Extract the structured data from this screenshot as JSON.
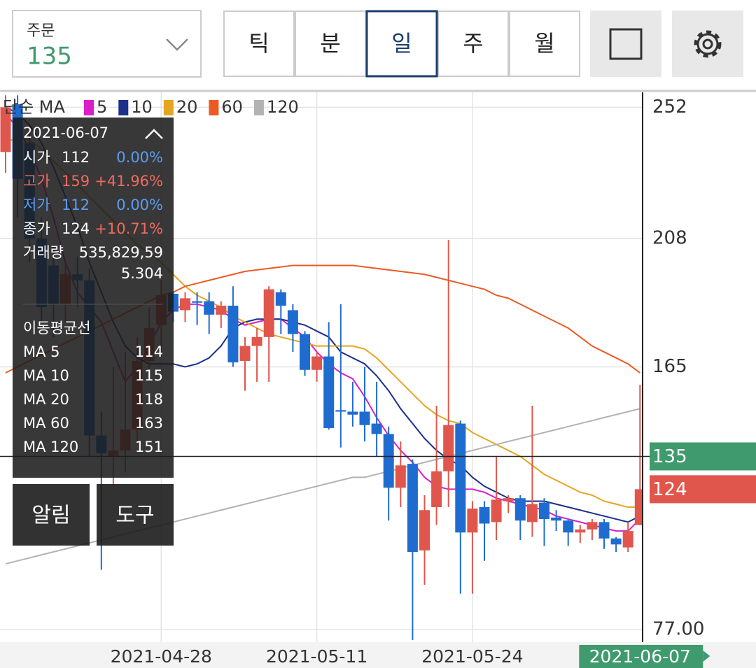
{
  "header": {
    "order_label": "주문",
    "order_value": "135",
    "tabs": [
      "틱",
      "분",
      "일",
      "주",
      "월"
    ],
    "selected_tab": 2
  },
  "chart_data": {
    "type": "candlestick",
    "legend_title": "단순 MA",
    "categories": [
      null,
      null,
      null,
      null,
      null,
      null,
      null,
      null,
      null,
      null,
      null,
      null,
      null,
      "2021-04-28",
      null,
      null,
      null,
      null,
      null,
      null,
      null,
      null,
      null,
      null,
      null,
      null,
      "2021-05-11",
      null,
      null,
      null,
      null,
      null,
      null,
      null,
      null,
      null,
      null,
      null,
      null,
      "2021-05-24",
      null,
      null,
      null,
      null,
      null,
      null,
      null,
      null,
      null,
      null,
      null,
      null,
      null,
      "2021-06-07"
    ],
    "open": [
      237,
      253,
      240,
      208,
      199,
      186,
      196,
      194,
      142,
      135,
      137,
      144,
      167,
      179,
      189.5,
      184,
      187,
      187,
      182.5,
      185.5,
      167,
      172,
      175,
      190,
      184,
      176,
      164,
      168.5,
      150.5,
      150,
      150,
      146,
      142.5,
      124.5,
      132.5,
      103.5,
      118,
      130,
      146,
      109.5,
      118,
      113,
      120,
      121,
      113,
      119.5,
      114.5,
      113.5,
      109.5,
      110.5,
      113,
      107.5,
      104.5,
      112
    ],
    "high": [
      256,
      256,
      245,
      215,
      205,
      200,
      202,
      198,
      150,
      165,
      170,
      175,
      185,
      194,
      190,
      190,
      190,
      190,
      187,
      192,
      175,
      178,
      192,
      191,
      186,
      177,
      170,
      180,
      186,
      160,
      165,
      160,
      145,
      140,
      134,
      122,
      152,
      207.5,
      147,
      120,
      120,
      135,
      122,
      122,
      152,
      121,
      117,
      114,
      112,
      114,
      114,
      108,
      113,
      159
    ],
    "low": [
      230,
      215,
      200,
      180,
      175,
      180,
      185,
      135,
      97,
      125,
      130,
      140,
      160,
      170,
      180,
      180,
      179,
      176,
      178,
      165,
      157,
      160,
      160,
      176,
      170,
      162,
      160,
      144,
      138,
      145,
      140,
      135,
      113.5,
      118,
      73.5,
      92,
      112,
      118,
      89,
      89,
      100,
      107,
      116,
      107,
      108,
      105,
      110,
      105,
      106,
      107,
      104,
      103,
      103,
      112
    ],
    "close": [
      252,
      228,
      208,
      185,
      186,
      196,
      194,
      142,
      136,
      137,
      144,
      167,
      178,
      189,
      183.5,
      188,
      186.5,
      182.5,
      185.5,
      166.5,
      172,
      175,
      191,
      185.5,
      176,
      164,
      168.5,
      144.5,
      150,
      149,
      145.5,
      142.5,
      124.5,
      132,
      103,
      117,
      130,
      145.5,
      109.5,
      117.5,
      112.5,
      120.5,
      121,
      113.5,
      119,
      114,
      113.5,
      109.5,
      110.5,
      113,
      107.5,
      105.5,
      110,
      124
    ],
    "up_color": "#e0564c",
    "down_color": "#1f6cd0",
    "series": [
      {
        "name": "5",
        "color": "#d81fc8",
        "values": [
          250,
          245,
          238,
          228,
          215,
          200,
          190,
          185,
          180,
          170,
          160,
          165,
          172,
          180,
          184,
          186,
          186,
          185,
          184,
          181,
          179,
          180,
          181,
          181,
          178,
          175,
          170,
          166,
          163,
          161,
          155,
          148,
          142,
          137,
          133,
          128,
          125,
          124,
          124,
          124,
          123,
          121,
          120,
          119,
          118,
          117,
          115,
          114,
          113,
          112,
          111,
          110,
          110,
          114
        ]
      },
      {
        "name": "10",
        "color": "#1c2f8c",
        "values": [
          252,
          250,
          246,
          240,
          232,
          222,
          212,
          200,
          190,
          180,
          172,
          168,
          166,
          166,
          166,
          165,
          166,
          168,
          172,
          178,
          180,
          181,
          181,
          181,
          180,
          179,
          177,
          175,
          170,
          168,
          166,
          162,
          157,
          151,
          146,
          141,
          137,
          134,
          132,
          128,
          125,
          123,
          121,
          120,
          120,
          120,
          119,
          118,
          117,
          116,
          115,
          114,
          113,
          115
        ]
      },
      {
        "name": "20",
        "color": "#e6a521",
        "values": [
          240,
          242,
          241,
          238,
          234,
          230,
          226,
          222,
          218,
          214,
          210,
          206,
          203,
          200,
          196,
          192,
          189,
          187,
          185,
          182,
          180,
          178,
          176,
          175,
          174,
          173,
          172,
          172,
          172,
          172,
          171,
          168,
          164,
          160,
          156,
          152,
          149,
          147,
          146,
          143,
          141,
          139,
          137,
          135,
          132,
          129,
          127,
          125,
          123,
          122,
          120,
          119,
          118,
          118
        ]
      },
      {
        "name": "60",
        "color": "#ec5a24",
        "values": [
          163,
          165,
          167,
          169,
          171,
          173,
          175,
          177,
          179,
          181,
          183,
          185,
          187,
          189,
          190,
          192,
          193,
          194,
          195,
          196,
          197,
          197.5,
          198,
          198.5,
          199,
          199,
          199,
          199,
          199,
          199,
          198.5,
          198,
          197.5,
          197,
          196.5,
          196,
          195,
          194,
          193,
          192,
          191,
          189,
          188,
          186,
          184,
          182,
          180,
          178,
          175,
          172,
          170,
          168,
          166,
          163
        ]
      },
      {
        "name": "120",
        "color": "#b3b3b3",
        "values": [
          99,
          100,
          101,
          102,
          103,
          104,
          105,
          106,
          107,
          108,
          109,
          110,
          111,
          112,
          113,
          114,
          115,
          116,
          117,
          118,
          119,
          120,
          121,
          122,
          123,
          124,
          125,
          126,
          127,
          128,
          128,
          129,
          130,
          131,
          132,
          133,
          134,
          135,
          136,
          137,
          138,
          139,
          140,
          141,
          142,
          143,
          144,
          145,
          146,
          147,
          148,
          149,
          150,
          151
        ]
      }
    ],
    "ylim": [
      73,
      257
    ],
    "yticks": [
      252,
      208,
      165,
      {
        "value": 77,
        "label": "77.00"
      }
    ],
    "crosshair_value": 135,
    "crosshair_color": "#3f9b6e",
    "last_close": 124
  },
  "tooltip": {
    "date": "2021-06-07",
    "rows": [
      {
        "label": "시가",
        "value": "112",
        "change": "0.00%"
      },
      {
        "label": "고가",
        "value": "159",
        "change": "+41.96%"
      },
      {
        "label": "저가",
        "value": "112",
        "change": "0.00%"
      },
      {
        "label": "종가",
        "value": "124",
        "change": "+10.71%"
      }
    ],
    "volume_label": "거래량",
    "volume": "535,829,59",
    "volume_cont": "5.304",
    "ma_title": "이동평균선",
    "ma_rows": [
      {
        "label": "MA 5",
        "value": "114"
      },
      {
        "label": "MA 10",
        "value": "115"
      },
      {
        "label": "MA 20",
        "value": "118"
      },
      {
        "label": "MA 60",
        "value": "163"
      },
      {
        "label": "MA 120",
        "value": "151"
      }
    ]
  },
  "buttons": [
    "알림",
    "도구"
  ]
}
